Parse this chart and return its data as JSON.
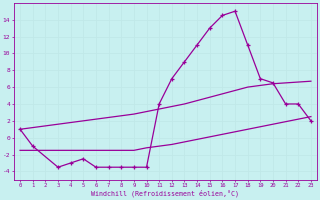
{
  "xlabel": "Windchill (Refroidissement éolien,°C)",
  "hours": [
    0,
    1,
    2,
    3,
    4,
    5,
    6,
    7,
    8,
    9,
    10,
    11,
    12,
    13,
    14,
    15,
    16,
    17,
    18,
    19,
    20,
    21,
    22,
    23
  ],
  "main_line": [
    1,
    -1,
    null,
    -3.5,
    -3,
    -2.5,
    -3.5,
    -3.5,
    -3.5,
    -3.5,
    -3.5,
    4,
    7,
    9,
    11,
    13,
    14.5,
    15,
    11,
    7,
    6.5,
    4,
    4,
    2
  ],
  "trend_low": [
    -1.5,
    -1.5,
    -1.5,
    -1.5,
    -1.5,
    -1.5,
    -1.5,
    -1.5,
    -1.5,
    -1.5,
    -1.2,
    -1.0,
    -0.8,
    -0.5,
    -0.2,
    0.1,
    0.4,
    0.7,
    1.0,
    1.3,
    1.6,
    1.9,
    2.2,
    2.5
  ],
  "trend_high": [
    1.0,
    1.2,
    1.4,
    1.6,
    1.8,
    2.0,
    2.2,
    2.4,
    2.6,
    2.8,
    3.1,
    3.4,
    3.7,
    4.0,
    4.4,
    4.8,
    5.2,
    5.6,
    6.0,
    6.2,
    6.4,
    6.5,
    6.6,
    6.7
  ],
  "color": "#990099",
  "bg_color": "#c8f0f0",
  "grid_color": "#c0e8e8",
  "ylim": [
    -5,
    16
  ],
  "yticks": [
    -4,
    -2,
    0,
    2,
    4,
    6,
    8,
    10,
    12,
    14
  ],
  "xticks": [
    0,
    1,
    2,
    3,
    4,
    5,
    6,
    7,
    8,
    9,
    10,
    11,
    12,
    13,
    14,
    15,
    16,
    17,
    18,
    19,
    20,
    21,
    22,
    23
  ]
}
